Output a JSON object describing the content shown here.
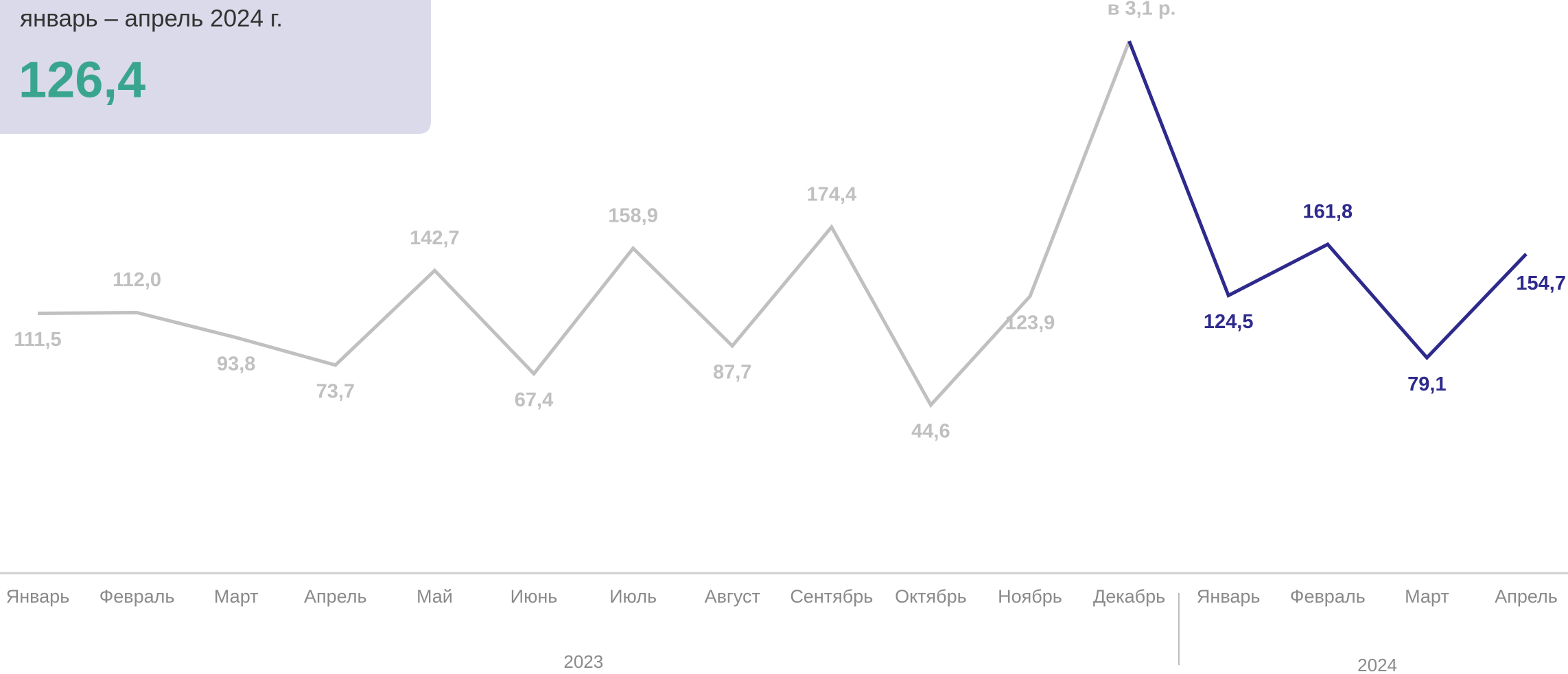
{
  "chart_data": {
    "type": "line",
    "summary": {
      "label": "январь – апрель 2024 г.",
      "value": 126.4,
      "value_label": "126,4"
    },
    "categories": [
      "Январь",
      "Февраль",
      "Март",
      "Апрель",
      "Май",
      "Июнь",
      "Июль",
      "Август",
      "Сентябрь",
      "Октябрь",
      "Ноябрь",
      "Декабрь",
      "Январь",
      "Февраль",
      "Март",
      "Апрель"
    ],
    "groups": [
      {
        "label": "2023",
        "from": 0,
        "to": 11
      },
      {
        "label": "2024",
        "from": 12,
        "to": 15
      }
    ],
    "series": [
      {
        "name": "2023",
        "color": "#c0c0c0",
        "values": [
          111.5,
          112.0,
          93.8,
          73.7,
          142.7,
          67.4,
          158.9,
          87.7,
          174.4,
          44.6,
          123.9,
          310,
          null,
          null,
          null,
          null
        ],
        "value_labels": [
          "111,5",
          "112,0",
          "93,8",
          "73,7",
          "142,7",
          "67,4",
          "158,9",
          "87,7",
          "174,4",
          "44,6",
          "123,9",
          "в 3,1 р.",
          null,
          null,
          null,
          null
        ]
      },
      {
        "name": "2024",
        "color": "#2e2a8c",
        "values": [
          null,
          null,
          null,
          null,
          null,
          null,
          null,
          null,
          null,
          null,
          null,
          310,
          124.5,
          161.8,
          79.1,
          154.7
        ],
        "value_labels": [
          null,
          null,
          null,
          null,
          null,
          null,
          null,
          null,
          null,
          null,
          null,
          null,
          "124,5",
          "161,8",
          "79,1",
          "154,7"
        ]
      }
    ],
    "ylim": [
      -78,
      340
    ],
    "legend": false,
    "grid": false
  }
}
